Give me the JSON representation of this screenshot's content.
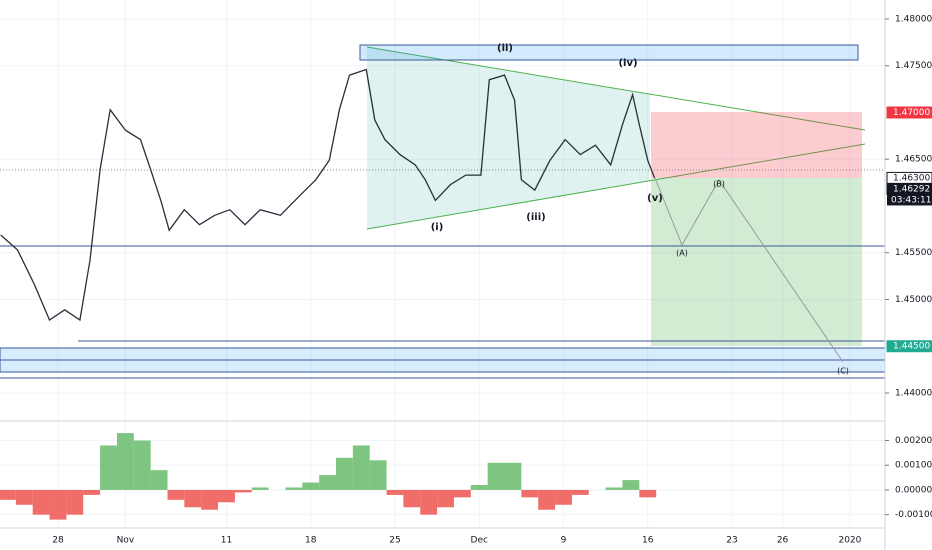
{
  "chart_data": [
    {
      "type": "line",
      "x": [
        -3.4,
        -2.4,
        -1.4,
        -0.5,
        0.4,
        1.3,
        1.9,
        2.5,
        3.1,
        4.0,
        4.9,
        5.5,
        6.1,
        6.6,
        7.5,
        8.4,
        9.3,
        10.2,
        11.1,
        12.0,
        13.2,
        14.4,
        15.3,
        16.1,
        16.7,
        17.3,
        18.3,
        18.8,
        19.4,
        20.3,
        21.2,
        21.8,
        22.4,
        23.3,
        24.2,
        25.1,
        25.6,
        26.5,
        27.1,
        27.5,
        28.3,
        29.2,
        30.1,
        31.0,
        31.9,
        32.8,
        33.5,
        34.1,
        34.5,
        35.0,
        35.4
      ],
      "series": [
        {
          "color": "#2a2e39",
          "values": [
            1.4569,
            1.4553,
            1.4516,
            1.4478,
            1.4489,
            1.4478,
            1.4542,
            1.4639,
            1.4703,
            1.4681,
            1.4671,
            1.4639,
            1.4606,
            1.4574,
            1.4596,
            1.458,
            1.459,
            1.4596,
            1.458,
            1.4596,
            1.459,
            1.4612,
            1.4628,
            1.4649,
            1.4703,
            1.474,
            1.4746,
            1.4692,
            1.4671,
            1.4655,
            1.4644,
            1.4628,
            1.4606,
            1.4623,
            1.4633,
            1.4633,
            1.4735,
            1.474,
            1.4713,
            1.4628,
            1.4617,
            1.4649,
            1.4671,
            1.4655,
            1.4665,
            1.4644,
            1.4687,
            1.4719,
            1.4687,
            1.4649,
            1.463
          ]
        }
      ],
      "xlim": [
        -3.44,
        49.08
      ],
      "xticks": [
        {
          "value": 0,
          "label": "28"
        },
        {
          "value": 4,
          "label": "Nov"
        },
        {
          "value": 10,
          "label": "11"
        },
        {
          "value": 15,
          "label": "18"
        },
        {
          "value": 20,
          "label": "25"
        },
        {
          "value": 25,
          "label": "Dec"
        },
        {
          "value": 30,
          "label": "9"
        },
        {
          "value": 35,
          "label": "16"
        },
        {
          "value": 40,
          "label": "23"
        },
        {
          "value": 43,
          "label": "26"
        },
        {
          "value": 47,
          "label": "2020"
        }
      ],
      "ylim": [
        1.43711,
        1.48203
      ],
      "yticks": [
        {
          "value": 1.48,
          "label": "1.48000"
        },
        {
          "value": 1.475,
          "label": "1.47500"
        },
        {
          "value": 1.465,
          "label": "1.46500"
        },
        {
          "value": 1.455,
          "label": "1.45500"
        },
        {
          "value": 1.45,
          "label": "1.45000"
        },
        {
          "value": 1.44,
          "label": "1.44000"
        }
      ],
      "price_labels": [
        {
          "value": 1.47,
          "label": "1.47000",
          "color": "#f23645"
        },
        {
          "value": 1.463,
          "label": "1.46300",
          "color": "#ffffff"
        },
        {
          "value": 1.46292,
          "label": "1.46292",
          "color": "#131722"
        },
        {
          "value": 1.445,
          "label": "1.44500",
          "color": "#22ab94"
        }
      ],
      "countdown": "03:43:11",
      "annotations": [
        "(i)",
        "(ii)",
        "(iii)",
        "(iv)",
        "(v)",
        "(A)",
        "(B)",
        "(C)"
      ],
      "grid": true
    },
    {
      "type": "bar",
      "x": [
        -3,
        -2,
        -1,
        0,
        1,
        2,
        3,
        4,
        5,
        6,
        7,
        8,
        9,
        10,
        11,
        12,
        13,
        14,
        15,
        16,
        17,
        18,
        19,
        20,
        21,
        22,
        23,
        24,
        25,
        26,
        27,
        28,
        29,
        30,
        31,
        32,
        33,
        34,
        35
      ],
      "values": [
        -0.0004,
        -0.0006,
        -0.001,
        -0.0012,
        -0.001,
        -0.0002,
        0.0018,
        0.0023,
        0.002,
        0.0008,
        -0.0004,
        -0.0007,
        -0.0008,
        -0.0005,
        -0.0001,
        0.0001,
        0.0,
        0.0001,
        0.0003,
        0.0006,
        0.0013,
        0.0018,
        0.0012,
        -0.0002,
        -0.0007,
        -0.001,
        -0.0007,
        -0.0003,
        0.0002,
        0.0011,
        0.0011,
        -0.0003,
        -0.0008,
        -0.0006,
        -0.0002,
        0.0,
        0.0001,
        0.0004,
        -0.0003
      ],
      "positive_color": "#66bb6a",
      "negative_color": "#ef5350",
      "ylim": [
        -0.00154,
        0.00275
      ],
      "yticks": [
        {
          "value": 0.002,
          "label": "0.00200"
        },
        {
          "value": 0.001,
          "label": "0.00100"
        },
        {
          "value": 0,
          "label": "0.00000"
        },
        {
          "value": -0.001,
          "label": "-0.00100"
        }
      ]
    }
  ]
}
